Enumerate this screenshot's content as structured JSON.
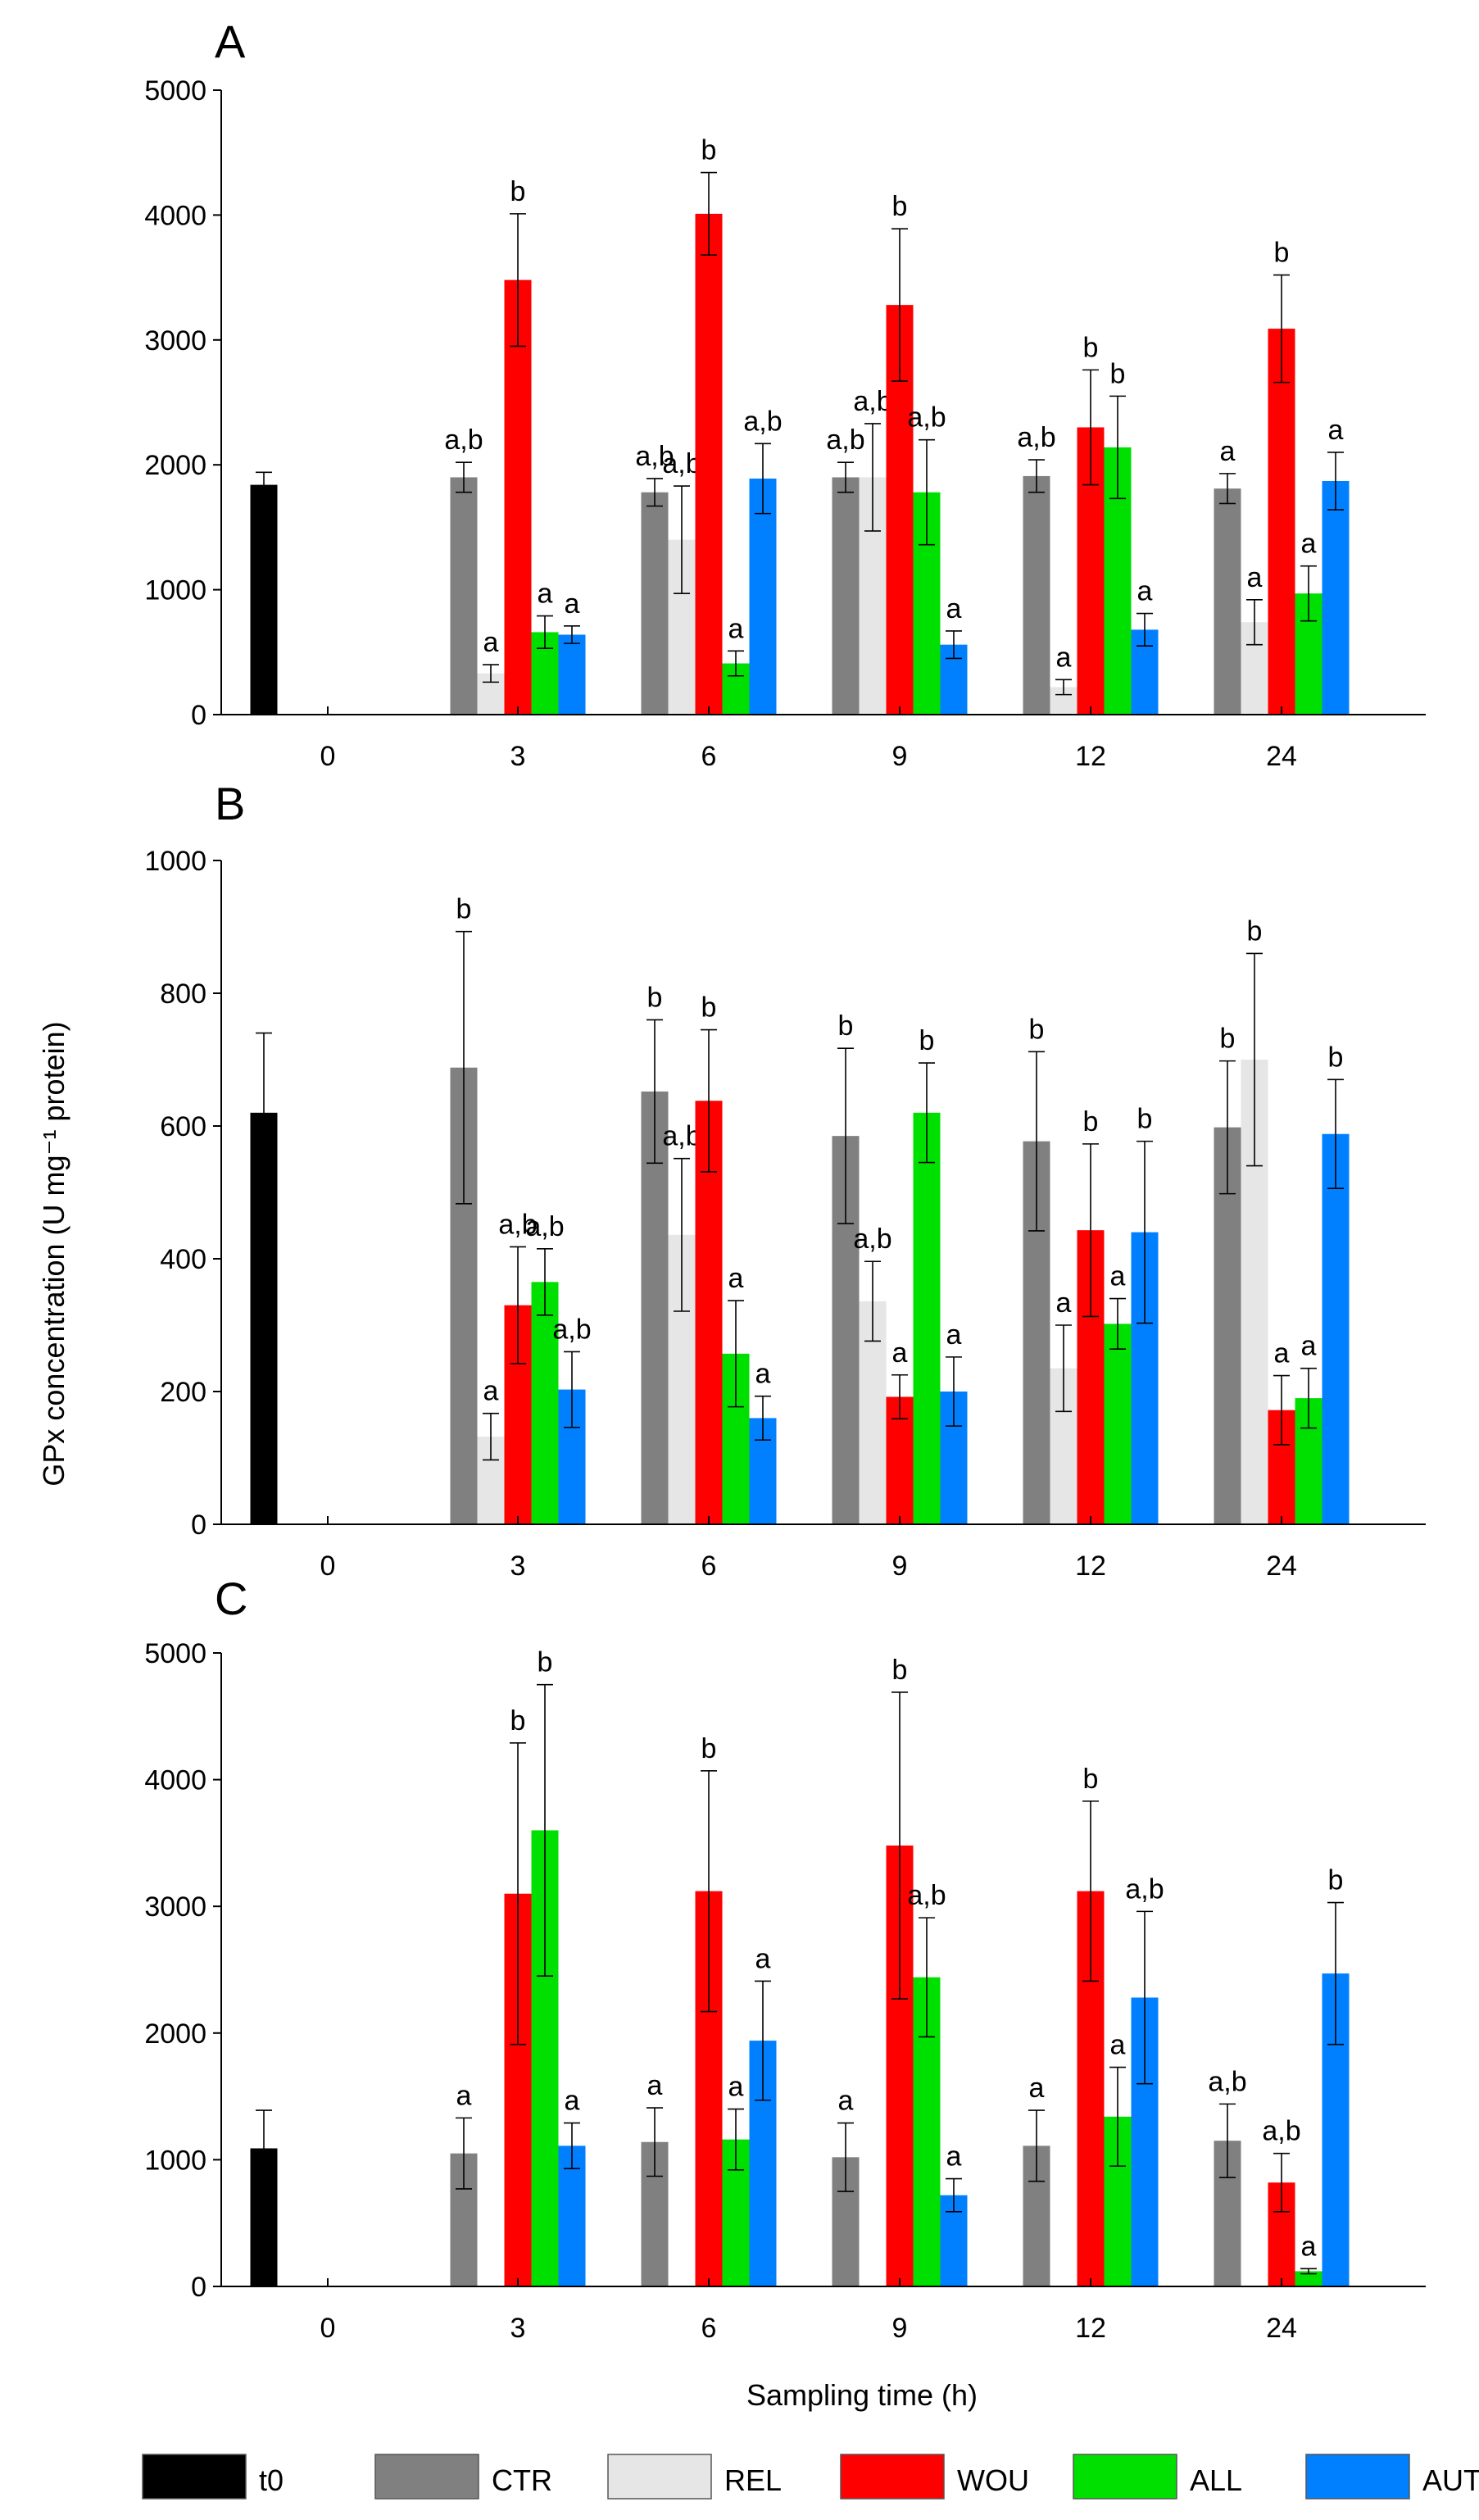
{
  "figure": {
    "ylabel": "GPx concentration (U mg⁻¹ protein)",
    "xlabel": "Sampling time (h)"
  },
  "legend": {
    "entries": [
      {
        "name": "t0",
        "color": "#000000"
      },
      {
        "name": "CTR",
        "color": "#808080"
      },
      {
        "name": "REL",
        "color": "#E6E6E6"
      },
      {
        "name": "WOU",
        "color": "#FF0000"
      },
      {
        "name": "ALL",
        "color": "#00E000"
      },
      {
        "name": "AUT",
        "color": "#0080FF"
      }
    ]
  },
  "chart_data": [
    {
      "type": "bar",
      "panel": "A",
      "categories": [
        "0",
        "3",
        "6",
        "9",
        "12",
        "24"
      ],
      "ylim": [
        0,
        5000
      ],
      "yticks": [
        0,
        1000,
        2000,
        3000,
        4000,
        5000
      ],
      "grid": false,
      "series": [
        {
          "name": "t0",
          "values": [
            1840,
            null,
            null,
            null,
            null,
            null
          ],
          "errors": [
            100,
            null,
            null,
            null,
            null,
            null
          ],
          "labels": [
            "",
            "",
            "",
            "",
            "",
            ""
          ]
        },
        {
          "name": "CTR",
          "values": [
            null,
            1900,
            1780,
            1900,
            1910,
            1810
          ],
          "errors": [
            null,
            120,
            110,
            120,
            130,
            120
          ],
          "labels": [
            "",
            "a,b",
            "a,b",
            "a,b",
            "a,b",
            "a"
          ]
        },
        {
          "name": "REL",
          "values": [
            null,
            330,
            1400,
            1900,
            220,
            740
          ],
          "errors": [
            null,
            70,
            430,
            430,
            60,
            180
          ],
          "labels": [
            "",
            "a",
            "a,b",
            "a,b",
            "a",
            "a"
          ]
        },
        {
          "name": "WOU",
          "values": [
            null,
            3480,
            4010,
            3280,
            2300,
            3090
          ],
          "errors": [
            null,
            530,
            330,
            610,
            460,
            430
          ],
          "labels": [
            "",
            "b",
            "b",
            "b",
            "b",
            "b"
          ]
        },
        {
          "name": "ALL",
          "values": [
            null,
            660,
            410,
            1780,
            2140,
            970
          ],
          "errors": [
            null,
            130,
            100,
            420,
            410,
            220
          ],
          "labels": [
            "",
            "a",
            "a",
            "a,b",
            "b",
            "a"
          ]
        },
        {
          "name": "AUT",
          "values": [
            null,
            640,
            1890,
            560,
            680,
            1870
          ],
          "errors": [
            null,
            70,
            280,
            110,
            130,
            230
          ],
          "labels": [
            "",
            "a",
            "a,b",
            "a",
            "a",
            "a"
          ]
        }
      ]
    },
    {
      "type": "bar",
      "panel": "B",
      "categories": [
        "0",
        "3",
        "6",
        "9",
        "12",
        "24"
      ],
      "ylim": [
        0,
        1000
      ],
      "yticks": [
        0,
        200,
        400,
        600,
        800,
        1000
      ],
      "grid": false,
      "series": [
        {
          "name": "t0",
          "values": [
            620,
            null,
            null,
            null,
            null,
            null
          ],
          "errors": [
            120,
            null,
            null,
            null,
            null,
            null
          ],
          "labels": [
            "",
            "",
            "",
            "",
            "",
            ""
          ]
        },
        {
          "name": "CTR",
          "values": [
            null,
            688,
            652,
            585,
            577,
            598
          ],
          "errors": [
            null,
            205,
            108,
            132,
            135,
            100
          ],
          "labels": [
            "",
            "b",
            "b",
            "b",
            "b",
            "b"
          ]
        },
        {
          "name": "REL",
          "values": [
            null,
            132,
            436,
            336,
            235,
            700
          ],
          "errors": [
            null,
            35,
            115,
            60,
            65,
            160
          ],
          "labels": [
            "",
            "a",
            "a,b",
            "a,b",
            "a",
            "b"
          ]
        },
        {
          "name": "WOU",
          "values": [
            null,
            330,
            638,
            192,
            443,
            172
          ],
          "errors": [
            null,
            88,
            107,
            33,
            130,
            52
          ],
          "labels": [
            "",
            "a,b",
            "b",
            "a",
            "b",
            "a"
          ]
        },
        {
          "name": "ALL",
          "values": [
            null,
            365,
            257,
            620,
            302,
            190
          ],
          "errors": [
            null,
            50,
            80,
            75,
            38,
            45
          ],
          "labels": [
            "",
            "a,b",
            "a",
            "b",
            "a",
            "a"
          ]
        },
        {
          "name": "AUT",
          "values": [
            null,
            203,
            160,
            200,
            440,
            588
          ],
          "errors": [
            null,
            57,
            33,
            52,
            137,
            82
          ],
          "labels": [
            "",
            "a,b",
            "a",
            "a",
            "b",
            "b"
          ]
        }
      ]
    },
    {
      "type": "bar",
      "panel": "C",
      "categories": [
        "0",
        "3",
        "6",
        "9",
        "12",
        "24"
      ],
      "ylim": [
        0,
        5000
      ],
      "yticks": [
        0,
        1000,
        2000,
        3000,
        4000,
        5000
      ],
      "grid": false,
      "series": [
        {
          "name": "t0",
          "values": [
            1090,
            null,
            null,
            null,
            null,
            null
          ],
          "errors": [
            300,
            null,
            null,
            null,
            null,
            null
          ],
          "labels": [
            "",
            "",
            "",
            "",
            "",
            ""
          ]
        },
        {
          "name": "CTR",
          "values": [
            null,
            1050,
            1140,
            1020,
            1110,
            1150
          ],
          "errors": [
            null,
            280,
            270,
            270,
            280,
            290
          ],
          "labels": [
            "",
            "a",
            "a",
            "a",
            "a",
            "a,b"
          ]
        },
        {
          "name": "REL",
          "values": [
            null,
            0,
            0,
            0,
            0,
            0
          ],
          "errors": [
            null,
            null,
            null,
            null,
            null,
            null
          ],
          "labels": [
            "",
            "",
            "",
            "",
            "",
            ""
          ]
        },
        {
          "name": "WOU",
          "values": [
            null,
            3100,
            3120,
            3480,
            3120,
            820
          ],
          "errors": [
            null,
            1190,
            950,
            1210,
            710,
            230
          ],
          "labels": [
            "",
            "b",
            "b",
            "b",
            "b",
            "a,b"
          ]
        },
        {
          "name": "ALL",
          "values": [
            null,
            3600,
            1160,
            2440,
            1340,
            120
          ],
          "errors": [
            null,
            1150,
            240,
            470,
            390,
            20
          ],
          "labels": [
            "",
            "b",
            "a",
            "a,b",
            "a",
            "a"
          ]
        },
        {
          "name": "AUT",
          "values": [
            null,
            1110,
            1940,
            720,
            2280,
            2470
          ],
          "errors": [
            null,
            180,
            470,
            130,
            680,
            560
          ],
          "labels": [
            "",
            "a",
            "a",
            "a",
            "a,b",
            "b"
          ]
        }
      ]
    }
  ]
}
